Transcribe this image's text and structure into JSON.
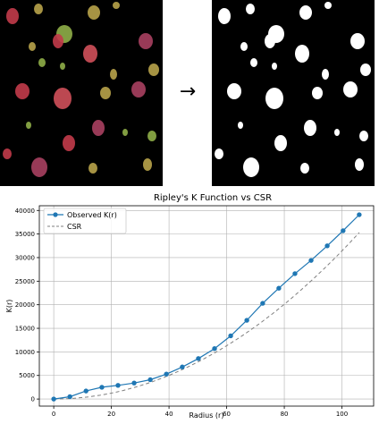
{
  "figure": {
    "arrow_glyph": "→",
    "left_image": {
      "description_icon": "fluorescent-cells-image",
      "background_color": "#000000",
      "cell_colors": [
        "#c23b4a",
        "#b8a34a",
        "#8fae48",
        "#d0505a",
        "#a84060"
      ]
    },
    "right_image": {
      "description_icon": "binary-mask-image",
      "background_color": "#000000",
      "mask_color": "#ffffff"
    }
  },
  "chart_data": {
    "type": "line",
    "title": "Ripley's K Function vs CSR",
    "xlabel": "Radius (r)",
    "ylabel": "K(r)",
    "xlim": [
      -5,
      111
    ],
    "ylim": [
      -1500,
      41000
    ],
    "xticks": [
      0,
      20,
      40,
      60,
      80,
      100
    ],
    "yticks": [
      0,
      5000,
      10000,
      15000,
      20000,
      25000,
      30000,
      35000,
      40000
    ],
    "grid": true,
    "legend_position": "top-left",
    "series": [
      {
        "name": "Observed K(r)",
        "style": "line-marker",
        "color": "#1f77b4",
        "x": [
          0,
          5.6,
          11.2,
          16.7,
          22.3,
          27.9,
          33.5,
          39.1,
          44.6,
          50.2,
          55.8,
          61.4,
          67.0,
          72.5,
          78.1,
          83.7,
          89.3,
          94.9,
          100.4,
          106.0
        ],
        "y": [
          0,
          500,
          1700,
          2500,
          2900,
          3400,
          4100,
          5300,
          6800,
          8600,
          10700,
          13400,
          16700,
          20300,
          23500,
          26600,
          29400,
          32500,
          35700,
          39100
        ]
      },
      {
        "name": "CSR",
        "style": "dashed",
        "color": "#7f7f7f",
        "x": [
          0,
          10,
          20,
          30,
          40,
          50,
          60,
          70,
          80,
          90,
          100,
          106
        ],
        "y": [
          0,
          314,
          1257,
          2827,
          5027,
          7854,
          11310,
          15394,
          20106,
          25447,
          31416,
          35299
        ]
      }
    ]
  }
}
